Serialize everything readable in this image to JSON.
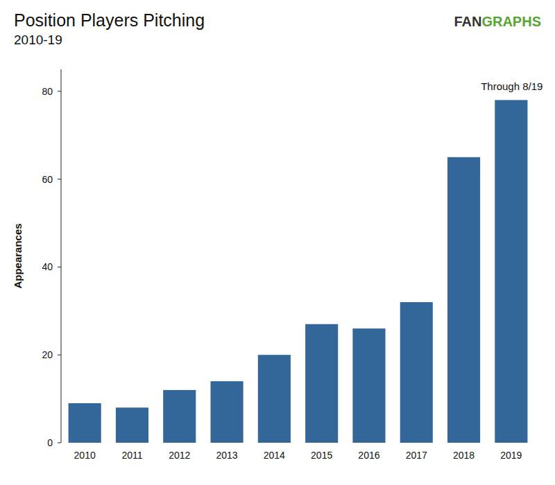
{
  "chart_data": {
    "type": "bar",
    "title": "Position Players Pitching",
    "subtitle": "2010-19",
    "logo": "FANGRAPHS",
    "y_label": "Appearances",
    "annotation": "Through 8/19",
    "categories": [
      "2010",
      "2011",
      "2012",
      "2013",
      "2014",
      "2015",
      "2016",
      "2017",
      "2018",
      "2019"
    ],
    "values": [
      9,
      8,
      12,
      14,
      20,
      27,
      26,
      32,
      65,
      78
    ],
    "color": "#33679a",
    "ylim": [
      0,
      85
    ],
    "yticks": [
      0,
      20,
      40,
      60,
      80
    ],
    "grid": false
  }
}
